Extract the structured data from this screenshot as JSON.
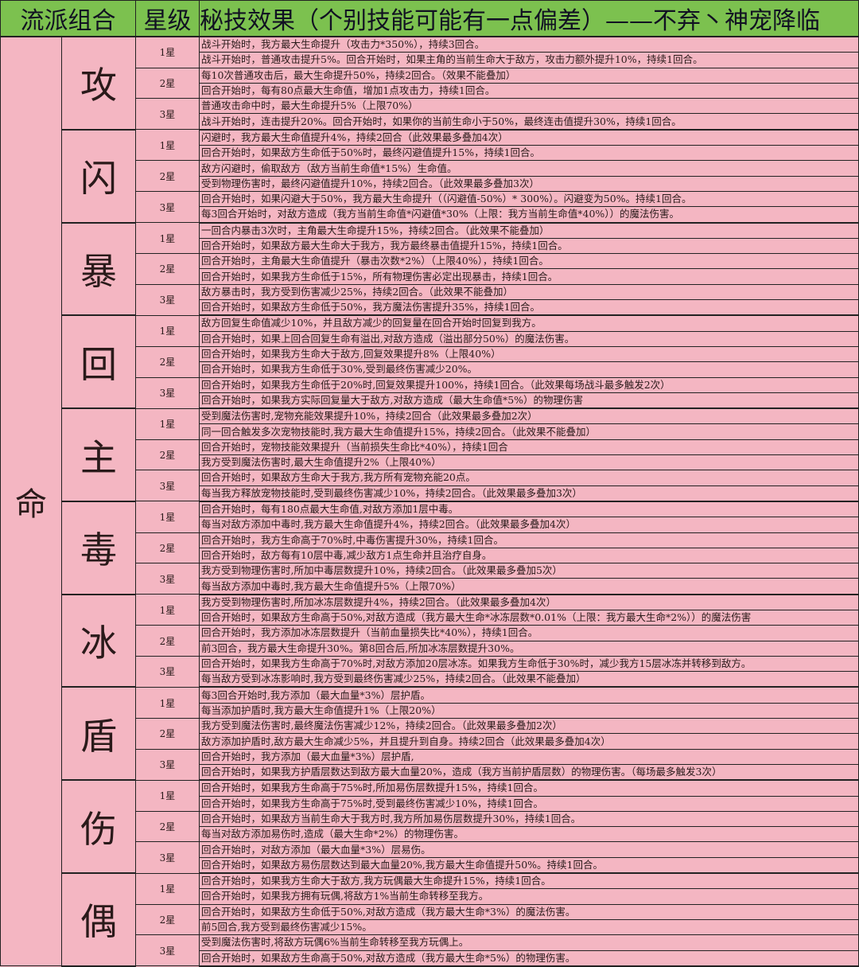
{
  "header": {
    "col_group": "流派组合",
    "col_star": "星级",
    "col_effect": "秘技效果（个别技能可能有一点偏差）——不弃丶神宠降临"
  },
  "root_label": "命",
  "colors": {
    "header_bg": "#7cc14f",
    "cell_bg": "#f4b6c2"
  },
  "groups": [
    {
      "name": "攻",
      "stars": [
        {
          "label": "1星",
          "effects": [
            "战斗开始时，我方最大生命提升（攻击力*350%），持续3回合。",
            "战斗开始时，普通攻击提升5%。回合开始时，如果主角的当前生命大于敌方，攻击力额外提升10%，持续1回合。"
          ]
        },
        {
          "label": "2星",
          "effects": [
            "每10次普通攻击后，最大生命提升50%，持续2回合。（效果不能叠加）",
            "回合开始时，每有80点最大生命值，增加1点攻击力，持续1回合。"
          ]
        },
        {
          "label": "3星",
          "effects": [
            "普通攻击命中时，最大生命提升5%（上限70%）",
            "战斗开始时，连击提升20%。回合开始时，如果你的当前生命小于50%，最终连击值提升30%，持续1回合。"
          ]
        }
      ]
    },
    {
      "name": "闪",
      "stars": [
        {
          "label": "1星",
          "effects": [
            "闪避时，我方最大生命值提升4%，持续2回合（此效果最多叠加4次）",
            "回合开始时，如果敌方生命低于50%时，最终闪避值提升15%，持续1回合。"
          ]
        },
        {
          "label": "2星",
          "effects": [
            "敌方闪避时，偷取敌方（敌方当前生命值*15%）生命值。",
            "受到物理伤害时，最终闪避值提升10%，持续2回合。（此效果最多叠加3次）"
          ]
        },
        {
          "label": "3星",
          "effects": [
            "回合开始时，如果闪避大于50%，我方最大生命提升（（闪避值-50%）* 300%）。闪避变为50%。持续1回合。",
            "每3回合开始时，对敌方造成（我方当前生命值*闪避值*30%（上限：我方当前生命值*40%））的魔法伤害。"
          ]
        }
      ]
    },
    {
      "name": "暴",
      "stars": [
        {
          "label": "1星",
          "effects": [
            "一回合内暴击3次时，主角最大生命提升15%，持续2回合。（此效果不能叠加）",
            "回合开始时，如果敌方最大生命大于我方，我方最终暴击值提升15%，持续1回合。"
          ]
        },
        {
          "label": "2星",
          "effects": [
            "回合开始时，主角最大生命值提升（暴击次数*2%）（上限40%），持续1回合。",
            "回合开始时，如果我方生命低于15%，所有物理伤害必定出现暴击，持续1回合。"
          ]
        },
        {
          "label": "3星",
          "effects": [
            "敌方暴击时，我方受到伤害减少25%，持续2回合。（此效果不能叠加）",
            "回合开始时，如果敌方生命低于50%，我方魔法伤害提升35%，持续1回合。"
          ]
        }
      ]
    },
    {
      "name": "回",
      "stars": [
        {
          "label": "1星",
          "effects": [
            "敌方回复生命值减少10%，并且敌方减少的回复量在回合开始时回复到我方。",
            "回合开始时，如果上回合回复生命有溢出,对敌方造成（溢出部分50%）的魔法伤害。"
          ]
        },
        {
          "label": "2星",
          "effects": [
            "回合开始时，如果我方生命大于敌方,回复效果提升8%（上限40%）",
            "回合开始时，如果我方生命低于30%,受到最终伤害减少20%。"
          ]
        },
        {
          "label": "3星",
          "effects": [
            "回合开始时，如果我方生命低于20%时,回复效果提升100%，持续1回合。（此效果每场战斗最多触发2次）",
            "回合开始时，如果我方实际回复量大于敌方,对敌方造成（最大生命值*5%）的物理伤害"
          ]
        }
      ]
    },
    {
      "name": "主",
      "stars": [
        {
          "label": "1星",
          "effects": [
            "受到魔法伤害时,宠物充能效果提升10%，持续2回合（此效果最多叠加2次）",
            "同一回合触发多次宠物技能时,我方最大生命值提升15%，持续2回合。（此效果不能叠加）"
          ]
        },
        {
          "label": "2星",
          "effects": [
            "回合开始时，宠物技能效果提升（当前损失生命比*40%），持续1回合",
            "我方受到魔法伤害时,最大生命值提升2%（上限40%）"
          ]
        },
        {
          "label": "3星",
          "effects": [
            "回合开始时，如果敌方生命大于我方,我方所有宠物充能20点。",
            "每当我方释放宠物技能时,受到最终伤害减少10%，持续2回合。（此效果最多叠加3次）"
          ]
        }
      ]
    },
    {
      "name": "毒",
      "stars": [
        {
          "label": "1星",
          "effects": [
            "回合开始时，每有180点最大生命值,对敌方添加1层中毒。",
            "每当对敌方添加中毒时,我方最大生命值提升4%，持续2回合。（此效果最多叠加4次）"
          ]
        },
        {
          "label": "2星",
          "effects": [
            "回合开始时，我方生命高于70%时,中毒伤害提升30%，持续1回合。",
            "回合开始时，敌方每有10层中毒,减少敌方1点生命并且治疗自身。"
          ]
        },
        {
          "label": "3星",
          "effects": [
            "我方受到物理伤害时,所加中毒层数提升10%，持续2回合。（此效果最多叠加5次）",
            "每当敌方添加中毒时,我方最大生命值提升5%（上限70%）"
          ]
        }
      ]
    },
    {
      "name": "冰",
      "stars": [
        {
          "label": "1星",
          "effects": [
            "我方受到物理伤害时,所加冰冻层数提升4%，持续2回合。（此效果最多叠加4次）",
            "回合开始时，如果敌方生命高于50%,对敌方造成（我方最大生命*冰冻层数*0.01%（上限：我方最大生命*2%））的魔法伤害"
          ]
        },
        {
          "label": "2星",
          "effects": [
            "回合开始时，我方添加冰冻层数提升（当前血量损失比*40%），持续1回合。",
            "前3回合，我方最大生命提升30%。第8回合后,所加冰冻层数提升30%。"
          ]
        },
        {
          "label": "3星",
          "effects": [
            "回合开始时，如果我方生命高于70%时,对敌方添加20层冰冻。如果我方生命低于30%时，减少我方15层冰冻并转移到敌方。",
            "每当敌方受到冰冻影响时,我方受到最终伤害减少25%，持续2回合。（此效果不能叠加）"
          ]
        }
      ]
    },
    {
      "name": "盾",
      "stars": [
        {
          "label": "1星",
          "effects": [
            "每3回合开始时,我方添加（最大血量*3%）层护盾。",
            "每当添加护盾时,我方最大生命值提升1%（上限20%）"
          ]
        },
        {
          "label": "2星",
          "effects": [
            "我方受到魔法伤害时,最终魔法伤害减少12%，持续2回合。（此效果最多叠加2次）",
            "敌方添加护盾时,敌方最大生命减少5%，并且提升到自身。持续2回合（此效果最多叠加4次）"
          ]
        },
        {
          "label": "3星",
          "effects": [
            "回合开始时，我方添加（最大血量*3%）层护盾,",
            "回合开始时，如果我方护盾层数达到敌方最大血量20%，造成（我方当前护盾层数）的物理伤害。（每场最多触发3次）"
          ]
        }
      ]
    },
    {
      "name": "伤",
      "stars": [
        {
          "label": "1星",
          "effects": [
            "回合开始时，如果我方生命高于75%时,所加易伤层数提升15%，持续1回合。",
            "回合开始时，如果我方生命高于75%时,受到最终伤害减少10%，持续1回合。"
          ]
        },
        {
          "label": "2星",
          "effects": [
            "回合开始时，如果敌方当前生命大于我方时,我方所加易伤层数提升30%，持续1回合。",
            "每当对敌方添加易伤时,造成（最大生命*2%）的物理伤害。"
          ]
        },
        {
          "label": "3星",
          "effects": [
            "回合开始时，对敌方添加（最大血量*3%）层易伤。",
            "回合开始时，如果敌方易伤层数达到最大血量20%,我方最大生命值提升50%。持续1回合。"
          ]
        }
      ]
    },
    {
      "name": "偶",
      "stars": [
        {
          "label": "1星",
          "effects": [
            "回合开始时，如果我方生命大于敌方,我方玩偶最大生命提升15%，持续1回合。",
            "回合开始时，如果我方拥有玩偶,将敌方1%当前生命转移至我方。"
          ]
        },
        {
          "label": "2星",
          "effects": [
            "回合开始时，如果敌方生命低于50%,对敌方造成（我方最大生命*3%）的魔法伤害。",
            "前5回合,我方受到最终伤害减少15%。"
          ]
        },
        {
          "label": "3星",
          "effects": [
            "受到魔法伤害时,将敌方玩偶6%当前生命转移至我方玩偶上。",
            "回合开始时，如果敌方生命高于50%,对敌方造成（我方最大生命*5%）的物理伤害。"
          ]
        }
      ]
    }
  ]
}
